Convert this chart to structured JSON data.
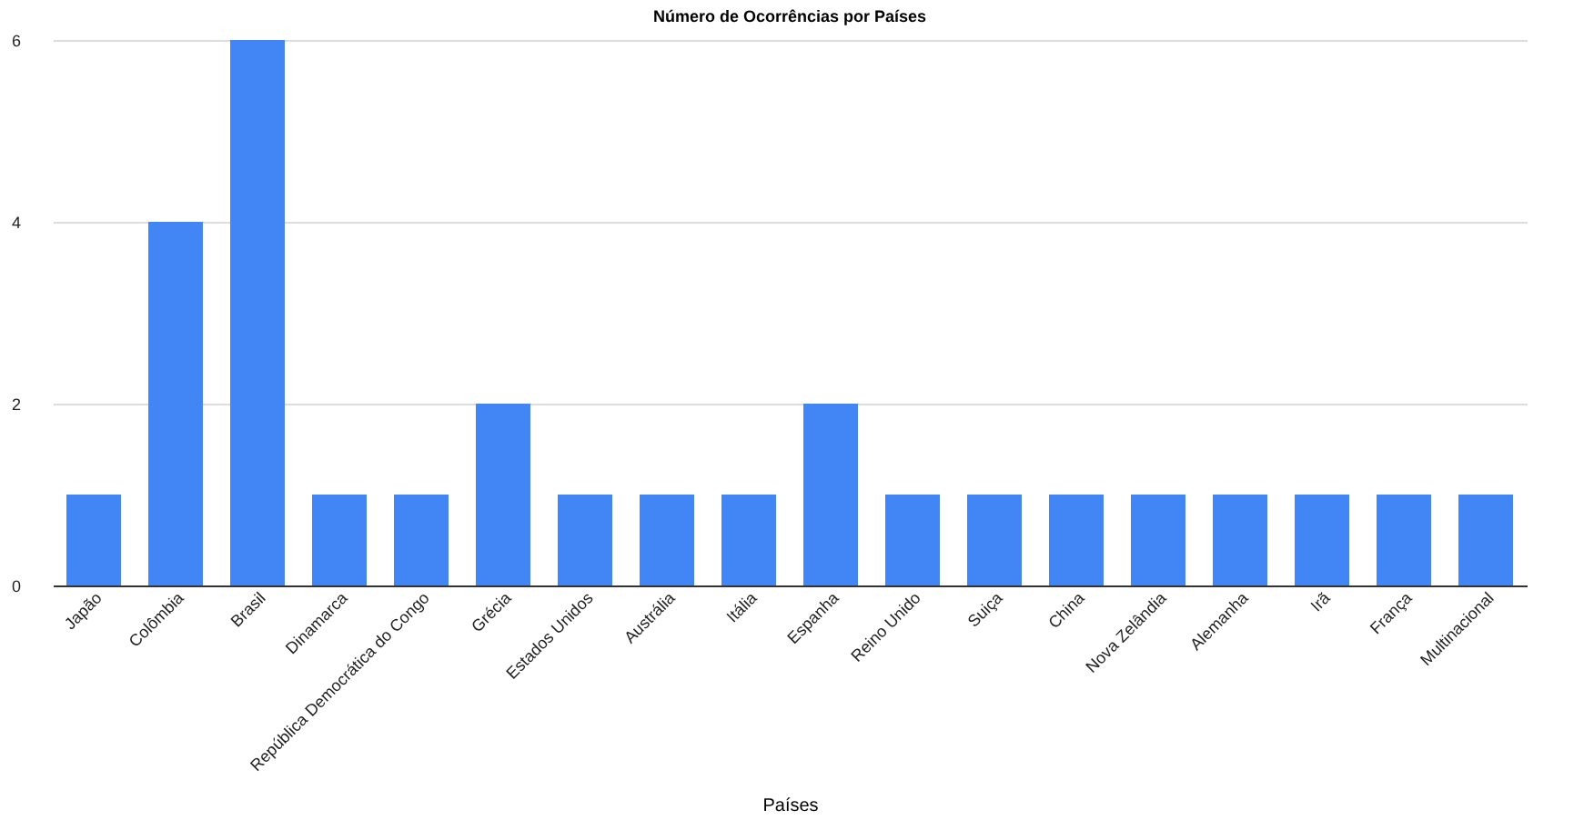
{
  "chart_data": {
    "type": "bar",
    "title": "Número de Ocorrências por Países",
    "xlabel": "Países",
    "categories": [
      "Japão",
      "Colômbia",
      "Brasil",
      "Dinamarca",
      "República Democrática do Congo",
      "Grécia",
      "Estados Unidos",
      "Austrália",
      "Itália",
      "Espanha",
      "Reino Unido",
      "Suiça",
      "China",
      "Nova Zelândia",
      "Alemanha",
      "Irã",
      "França",
      "Multinacional"
    ],
    "values": [
      1,
      4,
      6,
      1,
      1,
      2,
      1,
      1,
      1,
      2,
      1,
      1,
      1,
      1,
      1,
      1,
      1,
      1
    ],
    "color": "#4285f4",
    "ylim": [
      0,
      6
    ],
    "yticks": [
      0,
      2,
      4,
      6
    ],
    "grid": "y"
  }
}
